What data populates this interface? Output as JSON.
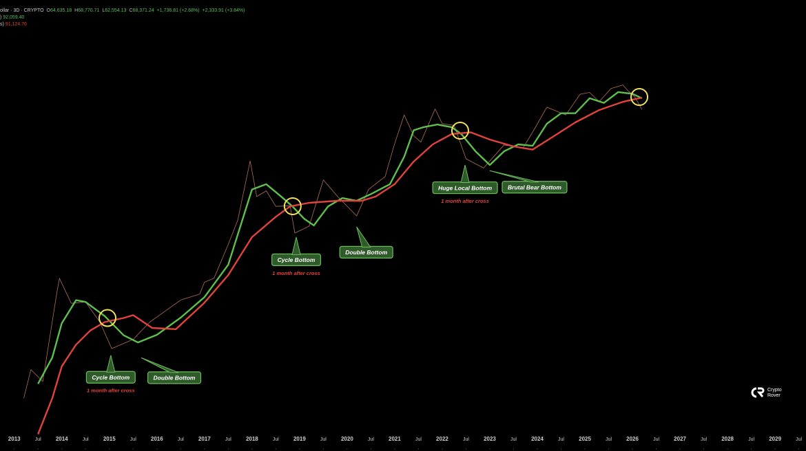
{
  "header": {
    "symbol": "ollar · 3D · CRYPTO",
    "ohlc": [
      {
        "label": "O",
        "value": "64,635.18"
      },
      {
        "label": "H",
        "value": "68,770.71"
      },
      {
        "label": "L",
        "value": "62,554.13"
      },
      {
        "label": "C",
        "value": "68,371.24"
      }
    ],
    "change": [
      "+1,736.81 (+2.68%)",
      "+2,333.91 (+3.84%)"
    ],
    "ma_fast": {
      "label": ")",
      "value": "92,059.40"
    },
    "ma_slow": {
      "label": "s)",
      "value": "91,124.76"
    }
  },
  "logo": [
    "Crypto",
    "Rover"
  ],
  "chart_data": {
    "type": "line",
    "log_scale": true,
    "xlim": [
      2012.7,
      2029.65
    ],
    "ylim": [
      20,
      200000
    ],
    "xticks": [
      2013,
      {
        "value": 2013.5,
        "label": "Jul"
      },
      2014,
      {
        "value": 2014.5,
        "label": "Jul"
      },
      2015,
      {
        "value": 2015.5,
        "label": "Jul"
      },
      2016,
      {
        "value": 2016.5,
        "label": "Jul"
      },
      2017,
      {
        "value": 2017.5,
        "label": "Jul"
      },
      2018,
      {
        "value": 2018.5,
        "label": "Jul"
      },
      2019,
      {
        "value": 2019.5,
        "label": "Jul"
      },
      2020,
      {
        "value": 2020.5,
        "label": "Jul"
      },
      2021,
      {
        "value": 2021.5,
        "label": "Jul"
      },
      2022,
      {
        "value": 2022.5,
        "label": "Jul"
      },
      2023,
      {
        "value": 2023.5,
        "label": "Jul"
      },
      2024,
      {
        "value": 2024.5,
        "label": "Jul"
      },
      2025,
      {
        "value": 2025.5,
        "label": "Jul"
      },
      2026,
      {
        "value": 2026.5,
        "label": "Jul"
      },
      2027,
      {
        "value": 2027.5,
        "label": "Jul"
      },
      2028,
      {
        "value": 2028.5,
        "label": "Jul"
      },
      2029,
      {
        "value": 2029.5,
        "label": "Jul"
      }
    ],
    "series": [
      {
        "color": "#b0705a",
        "width": 0.8,
        "x": [
          2013.2,
          2013.35,
          2013.6,
          2013.9,
          2013.95,
          2014.2,
          2014.5,
          2014.8,
          2015.05,
          2015.5,
          2015.85,
          2016.0,
          2016.5,
          2016.9,
          2017.0,
          2017.2,
          2017.5,
          2017.7,
          2017.96,
          2018.1,
          2018.3,
          2018.5,
          2018.8,
          2018.9,
          2019.2,
          2019.5,
          2019.8,
          2020.2,
          2020.45,
          2020.8,
          2021.0,
          2021.2,
          2021.4,
          2021.55,
          2021.85,
          2022.0,
          2022.25,
          2022.5,
          2022.87,
          2023.3,
          2023.7,
          2023.95,
          2024.2,
          2024.6,
          2024.9,
          2025.1,
          2025.3,
          2025.55,
          2025.8,
          2025.9,
          2026.05,
          2026.2
        ],
        "values": [
          60,
          120,
          90,
          800,
          1100,
          600,
          620,
          380,
          200,
          250,
          380,
          430,
          650,
          750,
          1000,
          1100,
          2500,
          4500,
          19000,
          8000,
          9200,
          6300,
          6400,
          3300,
          3900,
          12000,
          8000,
          5000,
          9500,
          13000,
          29000,
          58000,
          35000,
          30000,
          67000,
          47000,
          45000,
          20000,
          16000,
          28000,
          26000,
          42000,
          70000,
          58000,
          96000,
          100000,
          80000,
          110000,
          120000,
          105000,
          90000,
          66000
        ]
      },
      {
        "color": "#5fbf4f",
        "width": 2.4,
        "x": [
          2013.5,
          2013.8,
          2014.0,
          2014.3,
          2014.5,
          2014.9,
          2015.3,
          2015.6,
          2016.0,
          2016.5,
          2017.0,
          2017.5,
          2018.0,
          2018.3,
          2018.6,
          2018.85,
          2019.1,
          2019.3,
          2019.6,
          2019.9,
          2020.2,
          2020.5,
          2020.9,
          2021.2,
          2021.4,
          2021.6,
          2021.9,
          2022.2,
          2022.4,
          2022.7,
          2023.0,
          2023.3,
          2023.6,
          2023.9,
          2024.2,
          2024.5,
          2024.8,
          2025.1,
          2025.4,
          2025.7,
          2026.0,
          2026.2
        ],
        "values": [
          85,
          161,
          370,
          647,
          620,
          440,
          276,
          232,
          279,
          424,
          697,
          1530,
          9500,
          10800,
          8100,
          6300,
          4650,
          3970,
          6300,
          7720,
          7230,
          8500,
          10800,
          21000,
          40000,
          43000,
          46000,
          43000,
          36500,
          24000,
          17200,
          24000,
          28400,
          27400,
          46800,
          60500,
          60500,
          87000,
          77700,
          101000,
          97000,
          87000
        ]
      },
      {
        "color": "#e0443c",
        "width": 2.4,
        "x": [
          2013.5,
          2013.8,
          2014.0,
          2014.3,
          2014.6,
          2014.9,
          2015.3,
          2015.5,
          2015.9,
          2016.4,
          2017.0,
          2017.5,
          2018.0,
          2018.5,
          2018.8,
          2019.2,
          2019.8,
          2020.3,
          2020.6,
          2021.0,
          2021.4,
          2021.8,
          2022.2,
          2022.6,
          2023.0,
          2023.5,
          2023.9,
          2024.3,
          2024.8,
          2025.3,
          2025.8,
          2026.2
        ],
        "values": [
          25,
          60,
          130,
          220,
          310,
          380,
          420,
          450,
          330,
          320,
          610,
          1190,
          2990,
          4900,
          6300,
          6870,
          7230,
          7200,
          8000,
          10800,
          18700,
          28400,
          36500,
          38000,
          31900,
          27000,
          25000,
          33500,
          48400,
          65300,
          79800,
          88300
        ]
      }
    ],
    "crosses": [
      {
        "x": 2014.96,
        "y": 420
      },
      {
        "x": 2018.855,
        "y": 6330
      },
      {
        "x": 2022.377,
        "y": 39600
      },
      {
        "x": 2026.145,
        "y": 89700
      }
    ],
    "annotations": [
      {
        "text": "Cycle Bottom",
        "note": "1 month after cross",
        "x": 2015.03,
        "y": 170
      },
      {
        "text": "Double Bottom",
        "x": 2015.67,
        "y": 160
      },
      {
        "text": "Cycle Bottom",
        "note": "1 month after cross",
        "x": 2018.93,
        "y": 2990
      },
      {
        "text": "Double Bottom",
        "x": 2020.2,
        "y": 3840
      },
      {
        "text": "Huge Local Bottom",
        "note": "1 month after cross",
        "x": 2022.48,
        "y": 17200
      },
      {
        "text": "Brutal Bear Bottom",
        "x": 2023.0,
        "y": 15000
      }
    ]
  }
}
